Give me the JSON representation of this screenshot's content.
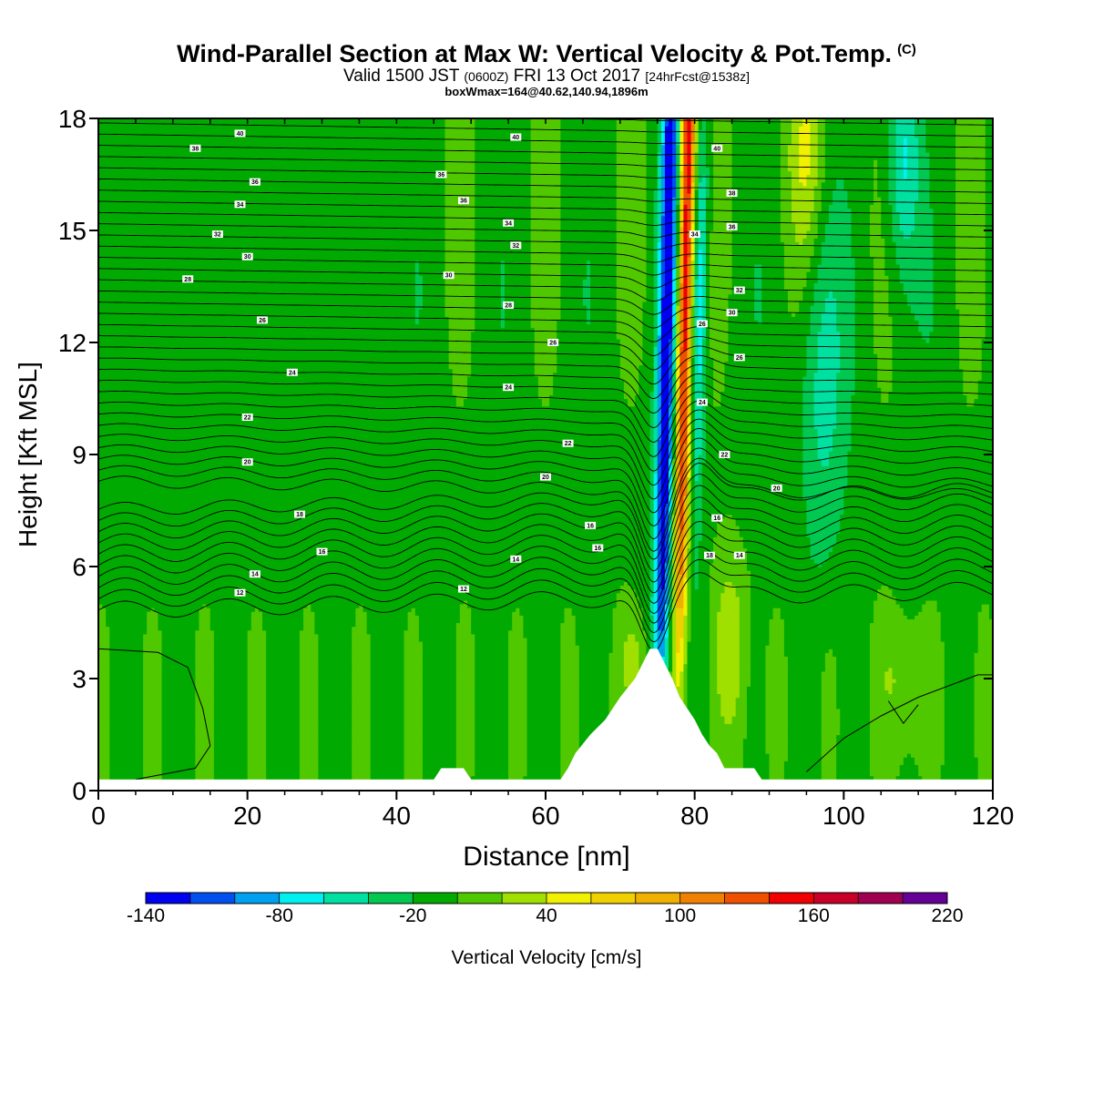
{
  "header": {
    "title": "Wind-Parallel Section at Max W: Vertical Velocity & Pot.Temp.",
    "copyright": "(C)",
    "valid_prefix": "Valid 1500 JST",
    "valid_utc": "(0600Z)",
    "valid_date": "FRI 13 Oct 2017",
    "forecast": "[24hrFcst@1538z]",
    "boxwmax": "boxWmax=164@40.62,140.94,1896m"
  },
  "colors": {
    "bins": [
      "#0000f0",
      "#0050f0",
      "#00a0f0",
      "#00f0f0",
      "#00e0a0",
      "#00c850",
      "#00aa00",
      "#50c800",
      "#a0e000",
      "#f0f000",
      "#f0d000",
      "#f0b000",
      "#f08000",
      "#f05000",
      "#f00000",
      "#c80028",
      "#a00050",
      "#640096"
    ],
    "contour": "#000000",
    "terrain": "#ffffff"
  },
  "chart_data": {
    "type": "heatmap",
    "xlabel": "Distance [nm]",
    "ylabel": "Height [Kft MSL]",
    "xlim": [
      0,
      120
    ],
    "ylim": [
      0,
      18
    ],
    "x_ticks": [
      "0",
      "20",
      "40",
      "60",
      "80",
      "100",
      "120"
    ],
    "y_ticks": [
      "0",
      "3",
      "6",
      "9",
      "12",
      "15",
      "18"
    ],
    "colorbar": {
      "label": "Vertical Velocity [cm/s]",
      "min": -140,
      "max": 220,
      "step": 20,
      "tick_labels": [
        "-140",
        "-80",
        "-20",
        "40",
        "100",
        "160",
        "220"
      ]
    },
    "terrain_profile_kft": {
      "x": [
        0,
        45,
        46,
        49,
        50,
        62,
        63,
        64,
        66,
        68,
        70,
        72,
        73,
        74,
        75,
        76,
        77,
        78,
        79,
        80,
        81,
        82,
        83,
        84,
        85,
        88,
        89,
        120
      ],
      "h": [
        0.3,
        0.3,
        0.6,
        0.6,
        0.3,
        0.3,
        0.6,
        1.0,
        1.5,
        1.9,
        2.5,
        3.0,
        3.4,
        3.8,
        3.8,
        3.4,
        3.0,
        2.5,
        2.2,
        1.9,
        1.5,
        1.2,
        1.0,
        0.6,
        0.6,
        0.6,
        0.3,
        0.3
      ]
    },
    "wmax_cm_s": 164,
    "series": [
      {
        "name": "Vertical Velocity",
        "field": "shaded",
        "values": [
          {
            "x": 77.5,
            "height_kft": 12,
            "w": 164
          },
          {
            "x": 75.5,
            "height_kft": 8,
            "w": -130
          },
          {
            "x": 108,
            "height_kft": 17,
            "w": -60
          }
        ]
      },
      {
        "name": "Pot.Temp.",
        "field": "contours",
        "contour_labels": [
          "12",
          "14",
          "16",
          "18",
          "20",
          "22",
          "24",
          "26",
          "28",
          "30",
          "32",
          "34",
          "36",
          "38",
          "40"
        ]
      }
    ]
  }
}
